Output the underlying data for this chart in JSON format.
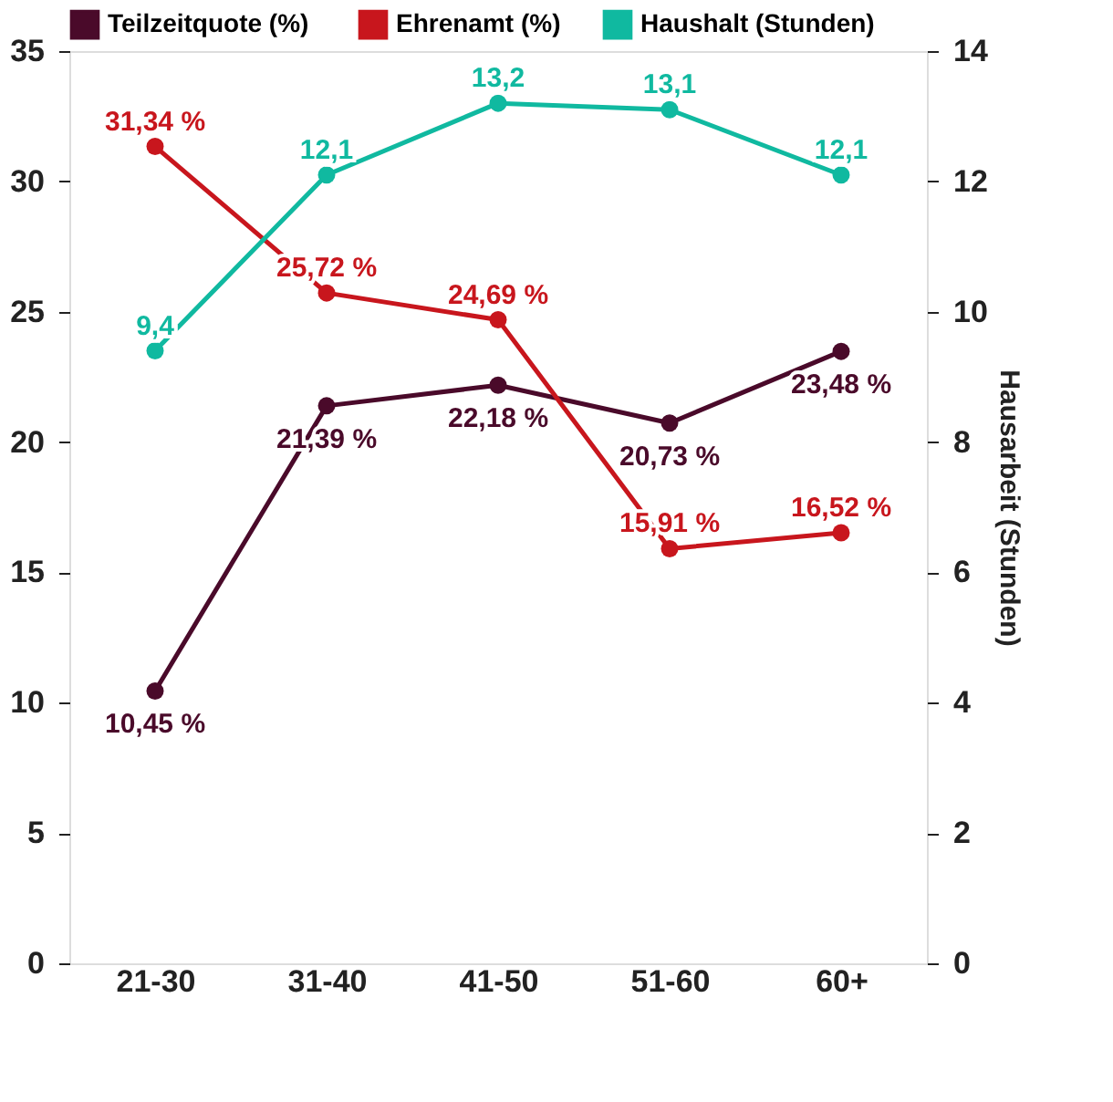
{
  "chart_data": {
    "type": "line",
    "categories": [
      "21-30",
      "31-40",
      "41-50",
      "51-60",
      "60+"
    ],
    "y2label": "Hausarbeit (Stunden)",
    "ylim": [
      0,
      35
    ],
    "yticks": [
      0,
      5,
      10,
      15,
      20,
      25,
      30,
      35
    ],
    "y2lim": [
      0,
      14
    ],
    "y2ticks": [
      0,
      2,
      4,
      6,
      8,
      10,
      12,
      14
    ],
    "legend": "top left",
    "marker": "circle",
    "grid": false,
    "series": [
      {
        "name": "Teilzeitquote  (%)",
        "color": "#4a0a2a",
        "values": [
          10.45,
          21.39,
          22.18,
          20.73,
          23.48
        ],
        "value_labels": [
          "10,45 %",
          "21,39 %",
          "22,18 %",
          "20,73 %",
          "23,48 %"
        ]
      },
      {
        "name": "Ehrenamt (%)",
        "color": "#c8161d",
        "values": [
          31.34,
          25.72,
          24.69,
          15.91,
          16.52
        ],
        "value_labels": [
          "31,34 %",
          "25,72 %",
          "24,69 %",
          "15,91 %",
          "16,52 %"
        ]
      },
      {
        "name": "Haushalt (Stunden)",
        "color": "#10b9a0",
        "axis": "y2",
        "values": [
          9.4,
          12.1,
          13.2,
          13.1,
          12.1
        ],
        "value_labels": [
          "9,4",
          "12,1",
          "13,2",
          "13,1",
          "12,1"
        ]
      }
    ]
  }
}
